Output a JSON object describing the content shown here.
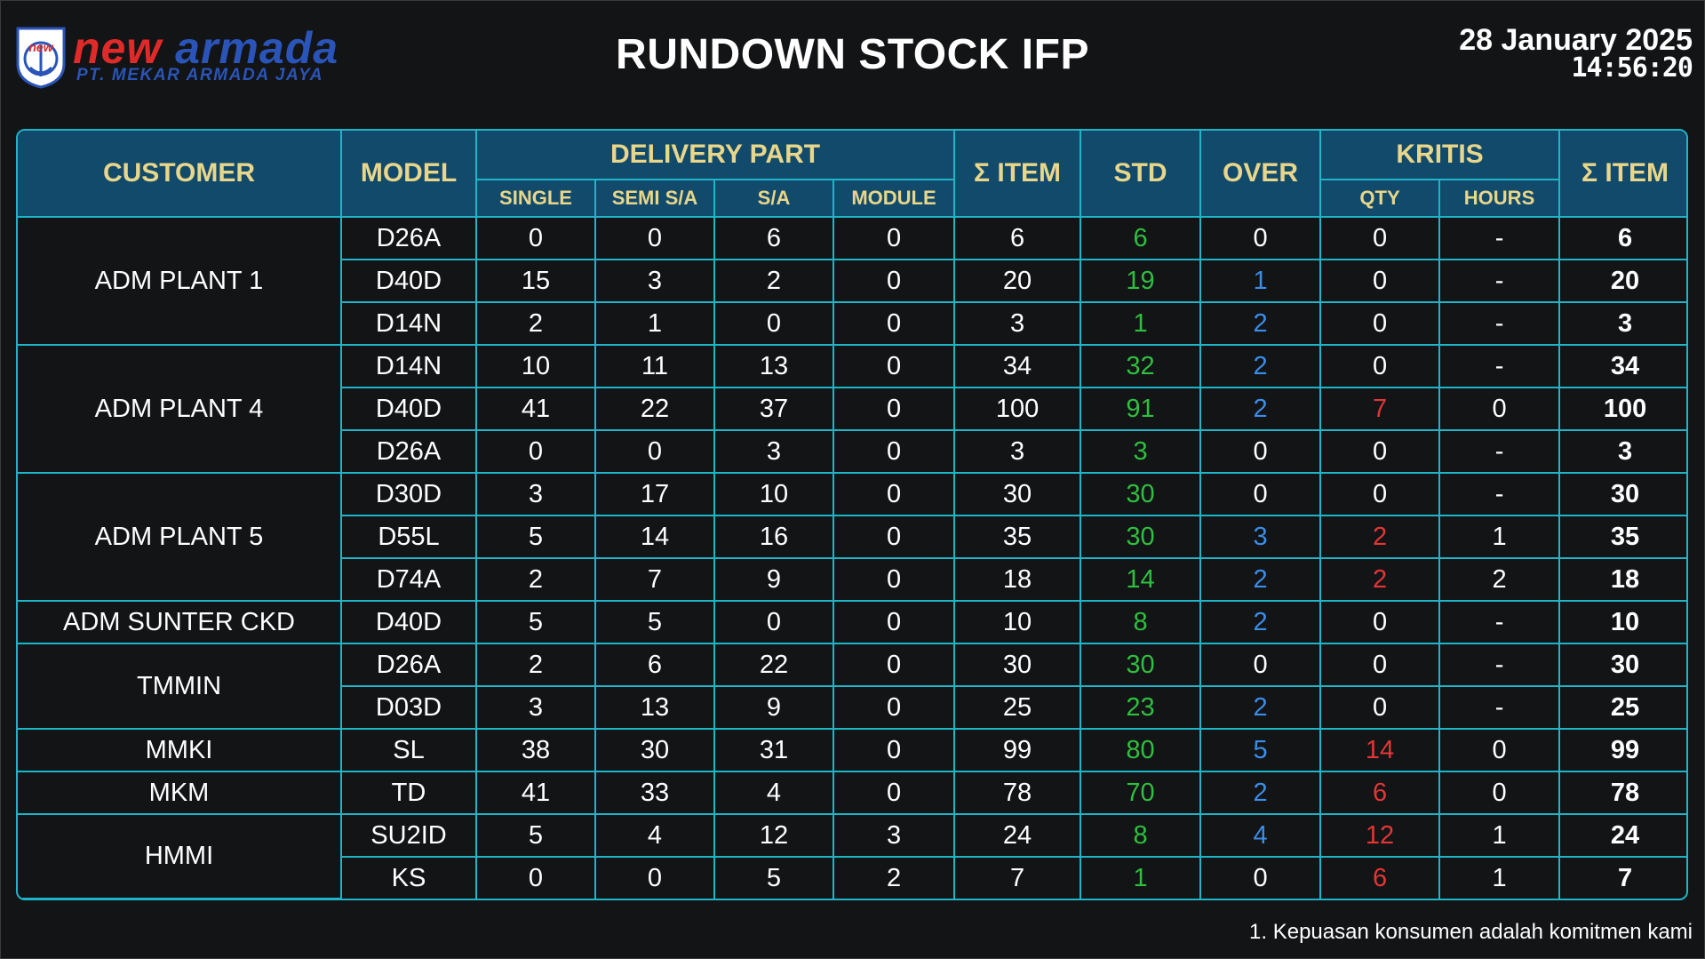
{
  "brand": {
    "name_part1": "new",
    "name_part2": "armada",
    "company": "PT. MEKAR ARMADA JAYA",
    "badge_text": "new"
  },
  "title": "RUNDOWN STOCK IFP",
  "date": "28 January 2025",
  "time": "14:56:20",
  "headers": {
    "customer": "CUSTOMER",
    "model": "MODEL",
    "delivery_part": "DELIVERY PART",
    "single": "SINGLE",
    "semi_sa": "SEMI S/A",
    "sa": "S/A",
    "module": "MODULE",
    "sum_item": "Σ ITEM",
    "std": "STD",
    "over": "OVER",
    "kritis": "KRITIS",
    "qty": "QTY",
    "hours": "HOURS",
    "sum_item_2": "Σ ITEM"
  },
  "colors": {
    "std": "#2fbf3f",
    "over_nonzero": "#3b8de8",
    "kritis_nonzero": "#e53535",
    "header_bg": "#124a6c",
    "header_text": "#e8d68a",
    "border": "#1fb5c8"
  },
  "rows": [
    {
      "customer": "ADM PLANT 1",
      "model": "D26A",
      "single": "0",
      "semi_sa": "0",
      "sa": "6",
      "module": "0",
      "sum": "6",
      "std": "6",
      "over": "0",
      "qty": "0",
      "hours": "-",
      "total": "6"
    },
    {
      "customer": "ADM PLANT 1",
      "model": "D40D",
      "single": "15",
      "semi_sa": "3",
      "sa": "2",
      "module": "0",
      "sum": "20",
      "std": "19",
      "over": "1",
      "qty": "0",
      "hours": "-",
      "total": "20"
    },
    {
      "customer": "ADM PLANT 1",
      "model": "D14N",
      "single": "2",
      "semi_sa": "1",
      "sa": "0",
      "module": "0",
      "sum": "3",
      "std": "1",
      "over": "2",
      "qty": "0",
      "hours": "-",
      "total": "3"
    },
    {
      "customer": "ADM PLANT 4",
      "model": "D14N",
      "single": "10",
      "semi_sa": "11",
      "sa": "13",
      "module": "0",
      "sum": "34",
      "std": "32",
      "over": "2",
      "qty": "0",
      "hours": "-",
      "total": "34"
    },
    {
      "customer": "ADM PLANT 4",
      "model": "D40D",
      "single": "41",
      "semi_sa": "22",
      "sa": "37",
      "module": "0",
      "sum": "100",
      "std": "91",
      "over": "2",
      "qty": "7",
      "hours": "0",
      "total": "100"
    },
    {
      "customer": "ADM PLANT 4",
      "model": "D26A",
      "single": "0",
      "semi_sa": "0",
      "sa": "3",
      "module": "0",
      "sum": "3",
      "std": "3",
      "over": "0",
      "qty": "0",
      "hours": "-",
      "total": "3"
    },
    {
      "customer": "ADM PLANT 5",
      "model": "D30D",
      "single": "3",
      "semi_sa": "17",
      "sa": "10",
      "module": "0",
      "sum": "30",
      "std": "30",
      "over": "0",
      "qty": "0",
      "hours": "-",
      "total": "30"
    },
    {
      "customer": "ADM PLANT 5",
      "model": "D55L",
      "single": "5",
      "semi_sa": "14",
      "sa": "16",
      "module": "0",
      "sum": "35",
      "std": "30",
      "over": "3",
      "qty": "2",
      "hours": "1",
      "total": "35"
    },
    {
      "customer": "ADM PLANT 5",
      "model": "D74A",
      "single": "2",
      "semi_sa": "7",
      "sa": "9",
      "module": "0",
      "sum": "18",
      "std": "14",
      "over": "2",
      "qty": "2",
      "hours": "2",
      "total": "18"
    },
    {
      "customer": "ADM SUNTER CKD",
      "model": "D40D",
      "single": "5",
      "semi_sa": "5",
      "sa": "0",
      "module": "0",
      "sum": "10",
      "std": "8",
      "over": "2",
      "qty": "0",
      "hours": "-",
      "total": "10"
    },
    {
      "customer": "TMMIN",
      "model": "D26A",
      "single": "2",
      "semi_sa": "6",
      "sa": "22",
      "module": "0",
      "sum": "30",
      "std": "30",
      "over": "0",
      "qty": "0",
      "hours": "-",
      "total": "30"
    },
    {
      "customer": "TMMIN",
      "model": "D03D",
      "single": "3",
      "semi_sa": "13",
      "sa": "9",
      "module": "0",
      "sum": "25",
      "std": "23",
      "over": "2",
      "qty": "0",
      "hours": "-",
      "total": "25"
    },
    {
      "customer": "MMKI",
      "model": "SL",
      "single": "38",
      "semi_sa": "30",
      "sa": "31",
      "module": "0",
      "sum": "99",
      "std": "80",
      "over": "5",
      "qty": "14",
      "hours": "0",
      "total": "99"
    },
    {
      "customer": "MKM",
      "model": "TD",
      "single": "41",
      "semi_sa": "33",
      "sa": "4",
      "module": "0",
      "sum": "78",
      "std": "70",
      "over": "2",
      "qty": "6",
      "hours": "0",
      "total": "78"
    },
    {
      "customer": "HMMI",
      "model": "SU2ID",
      "single": "5",
      "semi_sa": "4",
      "sa": "12",
      "module": "3",
      "sum": "24",
      "std": "8",
      "over": "4",
      "qty": "12",
      "hours": "1",
      "total": "24"
    },
    {
      "customer": "HMMI",
      "model": "KS",
      "single": "0",
      "semi_sa": "0",
      "sa": "5",
      "module": "2",
      "sum": "7",
      "std": "1",
      "over": "0",
      "qty": "6",
      "hours": "1",
      "total": "7"
    }
  ],
  "footer": "1. Kepuasan konsumen adalah komitmen kami"
}
